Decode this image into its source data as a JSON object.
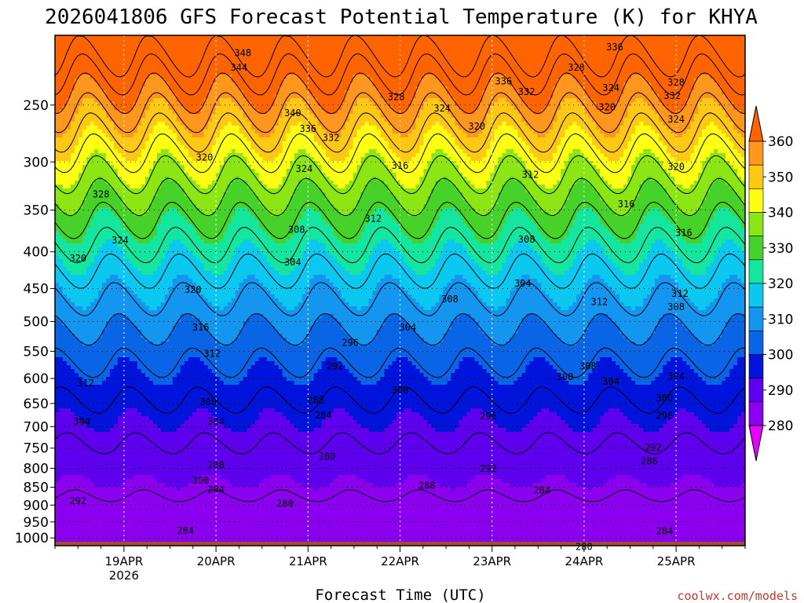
{
  "chart_data": {
    "type": "contour",
    "title": "2026041806 GFS Forecast Potential Temperature (K) for KHYA",
    "xlabel": "Forecast Time (UTC)",
    "ylabel": "",
    "credit": "coolwx.com/models",
    "x_ticks": [
      {
        "date": "2026-04-19",
        "label": "19APR",
        "sublabel": "2026"
      },
      {
        "date": "2026-04-20",
        "label": "20APR",
        "sublabel": ""
      },
      {
        "date": "2026-04-21",
        "label": "21APR",
        "sublabel": ""
      },
      {
        "date": "2026-04-22",
        "label": "22APR",
        "sublabel": ""
      },
      {
        "date": "2026-04-23",
        "label": "23APR",
        "sublabel": ""
      },
      {
        "date": "2026-04-24",
        "label": "24APR",
        "sublabel": ""
      },
      {
        "date": "2026-04-25",
        "label": "25APR",
        "sublabel": ""
      }
    ],
    "xlim": [
      "2026-04-18T06",
      "2026-04-25T18"
    ],
    "y_axis": "pressure (hPa), inverted, log-pressure spacing",
    "ylim": [
      1025,
      200
    ],
    "y_ticks": [
      250,
      300,
      350,
      400,
      450,
      500,
      550,
      600,
      650,
      700,
      750,
      800,
      850,
      900,
      950,
      1000
    ],
    "colorbar": {
      "levels": [
        280,
        290,
        300,
        310,
        320,
        330,
        340,
        350,
        360
      ],
      "colors": [
        "#e800ff",
        "#8a00ef",
        "#5e00ee",
        "#0014dc",
        "#0a64e6",
        "#1496f0",
        "#0ac8f0",
        "#14e6a0",
        "#46d228",
        "#8ce614",
        "#ffff14",
        "#ffc814",
        "#ff961e",
        "#ff6400"
      ]
    },
    "contour_interval": 4,
    "ground_color": "#a0522d",
    "contour_labels": [
      {
        "value": 348,
        "t": "2026-04-20T07",
        "p": 212
      },
      {
        "value": 344,
        "t": "2026-04-20T06",
        "p": 222
      },
      {
        "value": 340,
        "t": "2026-04-20T20",
        "p": 257
      },
      {
        "value": 336,
        "t": "2026-04-21T00",
        "p": 270
      },
      {
        "value": 332,
        "t": "2026-04-21T06",
        "p": 278
      },
      {
        "value": 328,
        "t": "2026-04-21T23",
        "p": 244
      },
      {
        "value": 324,
        "t": "2026-04-22T11",
        "p": 253
      },
      {
        "value": 320,
        "t": "2026-04-22T20",
        "p": 268
      },
      {
        "value": 336,
        "t": "2026-04-23T03",
        "p": 232
      },
      {
        "value": 332,
        "t": "2026-04-23T09",
        "p": 240
      },
      {
        "value": 328,
        "t": "2026-04-23T22",
        "p": 222
      },
      {
        "value": 324,
        "t": "2026-04-24T07",
        "p": 237
      },
      {
        "value": 320,
        "t": "2026-04-24T06",
        "p": 252
      },
      {
        "value": 336,
        "t": "2026-04-24T08",
        "p": 208
      },
      {
        "value": 328,
        "t": "2026-04-25T00",
        "p": 233
      },
      {
        "value": 332,
        "t": "2026-04-24T23",
        "p": 243
      },
      {
        "value": 324,
        "t": "2026-04-25T00",
        "p": 262
      },
      {
        "value": 320,
        "t": "2026-04-25T00",
        "p": 305
      },
      {
        "value": 320,
        "t": "2026-04-19T21",
        "p": 296
      },
      {
        "value": 324,
        "t": "2026-04-20T23",
        "p": 307
      },
      {
        "value": 316,
        "t": "2026-04-22T00",
        "p": 304
      },
      {
        "value": 312,
        "t": "2026-04-23T10",
        "p": 313
      },
      {
        "value": 316,
        "t": "2026-04-24T11",
        "p": 344
      },
      {
        "value": 316,
        "t": "2026-04-25T02",
        "p": 377
      },
      {
        "value": 312,
        "t": "2026-04-21T17",
        "p": 360
      },
      {
        "value": 308,
        "t": "2026-04-20T21",
        "p": 373
      },
      {
        "value": 308,
        "t": "2026-04-23T09",
        "p": 385
      },
      {
        "value": 304,
        "t": "2026-04-20T20",
        "p": 414
      },
      {
        "value": 304,
        "t": "2026-04-23T08",
        "p": 443
      },
      {
        "value": 312,
        "t": "2026-04-24T04",
        "p": 470
      },
      {
        "value": 312,
        "t": "2026-04-25T01",
        "p": 458
      },
      {
        "value": 308,
        "t": "2026-04-25T00",
        "p": 478
      },
      {
        "value": 308,
        "t": "2026-04-22T13",
        "p": 466
      },
      {
        "value": 304,
        "t": "2026-04-22T02",
        "p": 510
      },
      {
        "value": 296,
        "t": "2026-04-21T11",
        "p": 536
      },
      {
        "value": 292,
        "t": "2026-04-21T07",
        "p": 578
      },
      {
        "value": 300,
        "t": "2026-04-22T00",
        "p": 624
      },
      {
        "value": 288,
        "t": "2026-04-21T02",
        "p": 644
      },
      {
        "value": 284,
        "t": "2026-04-21T04",
        "p": 676
      },
      {
        "value": 296,
        "t": "2026-04-22T23",
        "p": 678
      },
      {
        "value": 300,
        "t": "2026-04-23T19",
        "p": 598
      },
      {
        "value": 308,
        "t": "2026-04-24T01",
        "p": 578
      },
      {
        "value": 304,
        "t": "2026-04-24T07",
        "p": 607
      },
      {
        "value": 304,
        "t": "2026-04-25T00",
        "p": 597
      },
      {
        "value": 300,
        "t": "2026-04-24T21",
        "p": 640
      },
      {
        "value": 296,
        "t": "2026-04-24T21",
        "p": 677
      },
      {
        "value": 292,
        "t": "2026-04-24T18",
        "p": 750
      },
      {
        "value": 286,
        "t": "2026-04-24T17",
        "p": 783
      },
      {
        "value": 292,
        "t": "2026-04-22T23",
        "p": 802
      },
      {
        "value": 288,
        "t": "2026-04-22T07",
        "p": 847
      },
      {
        "value": 284,
        "t": "2026-04-23T13",
        "p": 860
      },
      {
        "value": 280,
        "t": "2026-04-21T05",
        "p": 772
      },
      {
        "value": 280,
        "t": "2026-04-20T18",
        "p": 897
      },
      {
        "value": 284,
        "t": "2026-04-19T16",
        "p": 978
      },
      {
        "value": 284,
        "t": "2026-04-24T21",
        "p": 980
      },
      {
        "value": 280,
        "t": "2026-04-24T00",
        "p": 1030
      },
      {
        "value": 320,
        "t": "2026-04-18T12",
        "p": 409
      },
      {
        "value": 324,
        "t": "2026-04-18T23",
        "p": 386
      },
      {
        "value": 328,
        "t": "2026-04-18T18",
        "p": 333
      },
      {
        "value": 320,
        "t": "2026-04-19T18",
        "p": 452
      },
      {
        "value": 316,
        "t": "2026-04-19T20",
        "p": 510
      },
      {
        "value": 312,
        "t": "2026-04-19T23",
        "p": 555
      },
      {
        "value": 312,
        "t": "2026-04-18T14",
        "p": 610
      },
      {
        "value": 308,
        "t": "2026-04-19T22",
        "p": 648
      },
      {
        "value": 304,
        "t": "2026-04-20T00",
        "p": 690
      },
      {
        "value": 304,
        "t": "2026-04-18T13",
        "p": 690
      },
      {
        "value": 300,
        "t": "2026-04-19T20",
        "p": 833
      },
      {
        "value": 292,
        "t": "2026-04-18T12",
        "p": 889
      },
      {
        "value": 288,
        "t": "2026-04-20T00",
        "p": 793
      },
      {
        "value": 284,
        "t": "2026-04-20T00",
        "p": 857
      }
    ]
  }
}
